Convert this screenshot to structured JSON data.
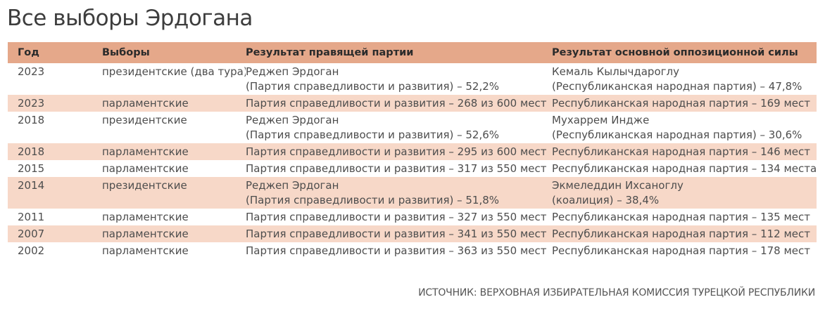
{
  "title": "Все выборы Эрдогана",
  "table": {
    "headers": {
      "year": "Год",
      "election": "Выборы",
      "ruling": "Результат правящей партии",
      "opposition": "Результат основной оппозиционной силы"
    },
    "rows": [
      {
        "year": "2023",
        "election": "президентские (два тура)",
        "ruling": [
          "Реджеп Эрдоган",
          "(Партия справедливости и развития) – 52,2%"
        ],
        "opposition": [
          "Кемаль Кылычдароглу",
          "(Республиканская народная партия) – 47,8%"
        ],
        "shaded": false
      },
      {
        "year": "2023",
        "election": "парламентские",
        "ruling": [
          "Партия справедливости и развития – 268 из 600 мест"
        ],
        "opposition": [
          "Республиканская народная партия – 169 мест"
        ],
        "shaded": true
      },
      {
        "year": "2018",
        "election": "президентские",
        "ruling": [
          "Реджеп Эрдоган",
          "(Партия справедливости и развития) – 52,6%"
        ],
        "opposition": [
          "Мухаррем Индже",
          "(Республиканская народная партия) – 30,6%"
        ],
        "shaded": false
      },
      {
        "year": "2018",
        "election": "парламентские",
        "ruling": [
          "Партия справедливости и развития – 295 из 600 мест"
        ],
        "opposition": [
          "Республиканская народная партия – 146 мест"
        ],
        "shaded": true
      },
      {
        "year": "2015",
        "election": "парламентские",
        "ruling": [
          "Партия справедливости и развития – 317 из 550 мест"
        ],
        "opposition": [
          "Республиканская народная партия – 134 места"
        ],
        "shaded": false
      },
      {
        "year": "2014",
        "election": "президентские",
        "ruling": [
          "Реджеп Эрдоган",
          "(Партия справедливости и развития) – 51,8%"
        ],
        "opposition": [
          "Экмеледдин Ихсаноглу",
          "(коалиция) – 38,4%"
        ],
        "shaded": true
      },
      {
        "year": "2011",
        "election": "парламентские",
        "ruling": [
          "Партия справедливости и развития – 327 из 550 мест"
        ],
        "opposition": [
          "Республиканская народная партия – 135 мест"
        ],
        "shaded": false
      },
      {
        "year": "2007",
        "election": "парламентские",
        "ruling": [
          "Партия справедливости и развития – 341 из 550 мест"
        ],
        "opposition": [
          "Республиканская народная партия – 112 мест"
        ],
        "shaded": true
      },
      {
        "year": "2002",
        "election": "парламентские",
        "ruling": [
          "Партия справедливости и развития – 363 из 550 мест"
        ],
        "opposition": [
          "Республиканская народная партия – 178 мест"
        ],
        "shaded": false
      }
    ]
  },
  "source": "ИСТОЧНИК: ВЕРХОВНАЯ ИЗБИРАТЕЛЬНАЯ КОМИССИЯ ТУРЕЦКОЙ РЕСПУБЛИКИ",
  "colors": {
    "header_background": "#e5a88a",
    "shaded_row_background": "#f7d8c8"
  }
}
